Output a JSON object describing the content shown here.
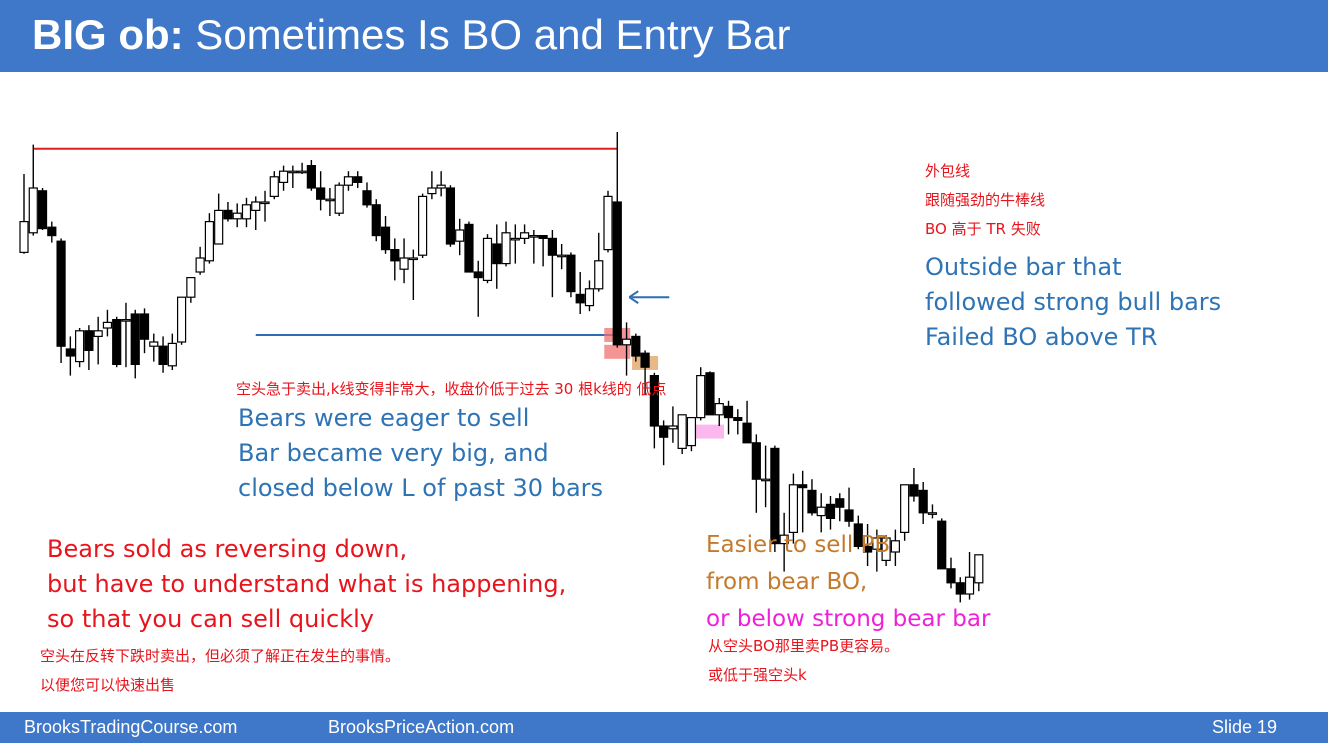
{
  "header": {
    "title_bold": "BIG ob:",
    "title_rest": " Sometimes Is BO and Entry Bar"
  },
  "footer": {
    "left": "BrooksTradingCourse.com",
    "center": "BrooksPriceAction.com",
    "slide": "Slide  19"
  },
  "annotations": {
    "outside_cn": [
      "外包线",
      "跟随强劲的牛棒线",
      "BO 高于 TR 失败"
    ],
    "outside_en": [
      "Outside bar that",
      "followed strong bull bars",
      "Failed BO above TR"
    ],
    "eager_cn": "空头急于卖出,k线变得非常大，收盘价低于过去 30 根k线的 低点",
    "eager_en": [
      "Bears were eager to sell",
      "Bar became very big, and",
      "closed below L of past 30 bars"
    ],
    "sold_en": [
      "Bears sold as reversing down,",
      "but have to understand what is happening,",
      "so that you can sell quickly"
    ],
    "sold_cn": [
      "空头在反转下跌时卖出，但必须了解正在发生的事情。",
      "以便您可以快速出售"
    ],
    "easier_en": [
      "Easier to sell PB",
      "from bear BO,"
    ],
    "below_en": "or below strong bear bar",
    "easier_cn": [
      "从空头BO那里卖PB更容易。",
      "或低于强空头k"
    ]
  },
  "colors": {
    "header": "#3f78c8",
    "range_top_line": "#e02020",
    "range_bottom_line": "#2e6db4",
    "arrow": "#2e6db4",
    "bear_body": "#000000",
    "bull_body": "#ffffff",
    "highlight_red": "#f07070",
    "highlight_orange": "#e0a060",
    "highlight_pink": "#f8a0e8"
  },
  "chart_data": {
    "type": "candlestick",
    "price_axis": [
      0,
      100
    ],
    "candles": [
      {
        "o": 57,
        "h": 85,
        "l": 56.5,
        "c": 68
      },
      {
        "o": 64,
        "h": 95.5,
        "l": 63,
        "c": 80
      },
      {
        "o": 79,
        "h": 80,
        "l": 65,
        "c": 65.5
      },
      {
        "o": 66,
        "h": 68,
        "l": 60.5,
        "c": 63
      },
      {
        "o": 61,
        "h": 62,
        "l": 17.5,
        "c": 23.5
      },
      {
        "o": 22.5,
        "h": 27,
        "l": 13,
        "c": 20
      },
      {
        "o": 18,
        "h": 30,
        "l": 16,
        "c": 29
      },
      {
        "o": 29,
        "h": 31,
        "l": 15,
        "c": 22
      },
      {
        "o": 27,
        "h": 34,
        "l": 17,
        "c": 29
      },
      {
        "o": 30,
        "h": 36.5,
        "l": 27,
        "c": 32
      },
      {
        "o": 33,
        "h": 34,
        "l": 16,
        "c": 17
      },
      {
        "o": 33,
        "h": 39,
        "l": 16,
        "c": 33
      },
      {
        "o": 35,
        "h": 36.5,
        "l": 12,
        "c": 17
      },
      {
        "o": 35,
        "h": 37,
        "l": 21,
        "c": 26
      },
      {
        "o": 23.5,
        "h": 28,
        "l": 18,
        "c": 25
      },
      {
        "o": 23.5,
        "h": 27,
        "l": 14,
        "c": 17
      },
      {
        "o": 16.5,
        "h": 28,
        "l": 15,
        "c": 24.5
      },
      {
        "o": 25,
        "h": 41,
        "l": 24,
        "c": 41
      },
      {
        "o": 41,
        "h": 48,
        "l": 39,
        "c": 48
      },
      {
        "o": 50,
        "h": 59,
        "l": 49,
        "c": 55
      },
      {
        "o": 54,
        "h": 71,
        "l": 53,
        "c": 68
      },
      {
        "o": 60,
        "h": 78,
        "l": 60,
        "c": 72
      },
      {
        "o": 72,
        "h": 75,
        "l": 68,
        "c": 69
      },
      {
        "o": 69,
        "h": 74.5,
        "l": 66,
        "c": 71
      },
      {
        "o": 69,
        "h": 76.5,
        "l": 66,
        "c": 74
      },
      {
        "o": 72,
        "h": 77,
        "l": 65,
        "c": 75
      },
      {
        "o": 75,
        "h": 79,
        "l": 68,
        "c": 75
      },
      {
        "o": 77,
        "h": 86,
        "l": 76,
        "c": 84
      },
      {
        "o": 82,
        "h": 88,
        "l": 79,
        "c": 86
      },
      {
        "o": 86,
        "h": 88,
        "l": 80,
        "c": 86
      },
      {
        "o": 86,
        "h": 89,
        "l": 85,
        "c": 86
      },
      {
        "o": 88,
        "h": 90,
        "l": 79,
        "c": 80
      },
      {
        "o": 80,
        "h": 86,
        "l": 72,
        "c": 76
      },
      {
        "o": 76,
        "h": 80,
        "l": 70,
        "c": 76
      },
      {
        "o": 71,
        "h": 82,
        "l": 70,
        "c": 81
      },
      {
        "o": 81,
        "h": 86,
        "l": 79,
        "c": 84
      },
      {
        "o": 84,
        "h": 86,
        "l": 80,
        "c": 82
      },
      {
        "o": 79,
        "h": 82,
        "l": 73,
        "c": 74
      },
      {
        "o": 74,
        "h": 76,
        "l": 61,
        "c": 63
      },
      {
        "o": 66,
        "h": 70,
        "l": 56.5,
        "c": 58
      },
      {
        "o": 58,
        "h": 62,
        "l": 47,
        "c": 54
      },
      {
        "o": 51,
        "h": 62,
        "l": 46,
        "c": 55
      },
      {
        "o": 55,
        "h": 58,
        "l": 40,
        "c": 55
      },
      {
        "o": 56,
        "h": 78,
        "l": 55,
        "c": 77
      },
      {
        "o": 78,
        "h": 86,
        "l": 76,
        "c": 80
      },
      {
        "o": 80,
        "h": 86,
        "l": 77,
        "c": 81
      },
      {
        "o": 80,
        "h": 81,
        "l": 59,
        "c": 60
      },
      {
        "o": 61,
        "h": 69,
        "l": 56,
        "c": 65
      },
      {
        "o": 67,
        "h": 68,
        "l": 50,
        "c": 50
      },
      {
        "o": 50,
        "h": 54,
        "l": 34,
        "c": 48
      },
      {
        "o": 47,
        "h": 63.5,
        "l": 46,
        "c": 62
      },
      {
        "o": 60,
        "h": 67,
        "l": 44,
        "c": 53
      },
      {
        "o": 53,
        "h": 68,
        "l": 52,
        "c": 64
      },
      {
        "o": 62,
        "h": 67,
        "l": 53,
        "c": 62
      },
      {
        "o": 62,
        "h": 67,
        "l": 60,
        "c": 64
      },
      {
        "o": 63,
        "h": 65,
        "l": 53,
        "c": 63
      },
      {
        "o": 63,
        "h": 63,
        "l": 52,
        "c": 62
      },
      {
        "o": 62,
        "h": 65,
        "l": 41,
        "c": 56
      },
      {
        "o": 56,
        "h": 60,
        "l": 51,
        "c": 56
      },
      {
        "o": 56,
        "h": 57,
        "l": 41,
        "c": 43
      },
      {
        "o": 42,
        "h": 50,
        "l": 35,
        "c": 39
      },
      {
        "o": 38,
        "h": 47,
        "l": 36,
        "c": 44
      },
      {
        "o": 44,
        "h": 64,
        "l": 43,
        "c": 54
      },
      {
        "o": 58,
        "h": 79,
        "l": 57,
        "c": 77
      },
      {
        "o": 75,
        "h": 100,
        "l": 23,
        "c": 24
      },
      {
        "o": 24,
        "h": 32,
        "l": 13,
        "c": 26
      },
      {
        "o": 27,
        "h": 28,
        "l": 18,
        "c": 20
      },
      {
        "o": 21,
        "h": 22,
        "l": 6,
        "c": 16
      },
      {
        "o": 13,
        "h": 14,
        "l": -13,
        "c": -5
      },
      {
        "o": -5,
        "h": -3,
        "l": -19,
        "c": -9
      },
      {
        "o": -6,
        "h": 2,
        "l": -11,
        "c": -5
      },
      {
        "o": -13,
        "h": -1,
        "l": -15,
        "c": -1
      },
      {
        "o": -12,
        "h": -2,
        "l": -14,
        "c": -2
      },
      {
        "o": -2,
        "h": 16,
        "l": -3,
        "c": 13
      },
      {
        "o": 14,
        "h": 14.5,
        "l": -1,
        "c": -1
      },
      {
        "o": -1,
        "h": 5,
        "l": -5,
        "c": 3
      },
      {
        "o": 2,
        "h": 4,
        "l": -8,
        "c": -2
      },
      {
        "o": -2,
        "h": 1,
        "l": -8,
        "c": -3
      },
      {
        "o": -4,
        "h": 4,
        "l": -11,
        "c": -11
      },
      {
        "o": -11,
        "h": -8,
        "l": -36,
        "c": -24
      },
      {
        "o": -24,
        "h": -12,
        "l": -34,
        "c": -24
      },
      {
        "o": -13,
        "h": -12,
        "l": -50,
        "c": -47
      },
      {
        "o": -47,
        "h": -36,
        "l": -57,
        "c": -44
      },
      {
        "o": -43,
        "h": -22,
        "l": -47,
        "c": -26
      },
      {
        "o": -26,
        "h": -21,
        "l": -43,
        "c": -27
      },
      {
        "o": -28,
        "h": -24,
        "l": -37,
        "c": -36
      },
      {
        "o": -37,
        "h": -29,
        "l": -43,
        "c": -34
      },
      {
        "o": -33,
        "h": -30,
        "l": -42,
        "c": -38
      },
      {
        "o": -31,
        "h": -29,
        "l": -39,
        "c": -34
      },
      {
        "o": -35,
        "h": -27,
        "l": -41,
        "c": -39
      },
      {
        "o": -40,
        "h": -37,
        "l": -49,
        "c": -48
      },
      {
        "o": -48,
        "h": -40,
        "l": -55,
        "c": -50
      },
      {
        "o": -49,
        "h": -42,
        "l": -57,
        "c": -45
      },
      {
        "o": -53,
        "h": -44,
        "l": -55,
        "c": -45
      },
      {
        "o": -50,
        "h": -42,
        "l": -55,
        "c": -46
      },
      {
        "o": -43,
        "h": -26,
        "l": -46,
        "c": -26
      },
      {
        "o": -26,
        "h": -20,
        "l": -32,
        "c": -30
      },
      {
        "o": -28,
        "h": -25,
        "l": -40,
        "c": -36
      },
      {
        "o": -36,
        "h": -33,
        "l": -38,
        "c": -36
      },
      {
        "o": -39,
        "h": -38,
        "l": -56,
        "c": -56
      },
      {
        "o": -56,
        "h": -52,
        "l": -63,
        "c": -61
      },
      {
        "o": -61,
        "h": -59,
        "l": -68,
        "c": -65
      },
      {
        "o": -65,
        "h": -50,
        "l": -67,
        "c": -59
      },
      {
        "o": -61,
        "h": -51,
        "l": -64,
        "c": -51
      }
    ],
    "range_high": 94,
    "range_low": 27.5,
    "arrow_price": 41,
    "highlights": [
      {
        "candle": 64,
        "price": 27.5,
        "color": "red"
      },
      {
        "candle": 64,
        "price": 21.5,
        "color": "red"
      },
      {
        "candle": 67,
        "price": 17.5,
        "color": "orange"
      },
      {
        "candle": 74,
        "price": -7,
        "color": "pink"
      }
    ]
  }
}
